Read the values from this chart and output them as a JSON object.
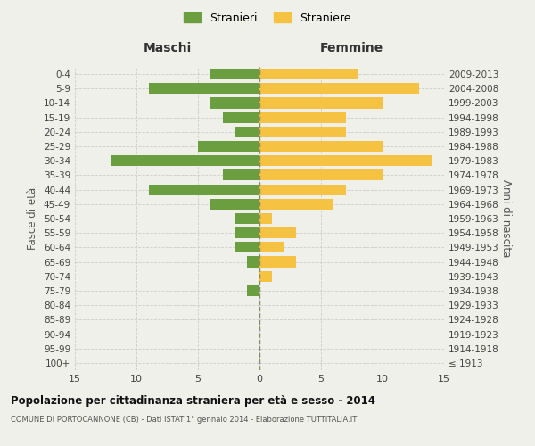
{
  "age_groups": [
    "100+",
    "95-99",
    "90-94",
    "85-89",
    "80-84",
    "75-79",
    "70-74",
    "65-69",
    "60-64",
    "55-59",
    "50-54",
    "45-49",
    "40-44",
    "35-39",
    "30-34",
    "25-29",
    "20-24",
    "15-19",
    "10-14",
    "5-9",
    "0-4"
  ],
  "birth_years": [
    "≤ 1913",
    "1914-1918",
    "1919-1923",
    "1924-1928",
    "1929-1933",
    "1934-1938",
    "1939-1943",
    "1944-1948",
    "1949-1953",
    "1954-1958",
    "1959-1963",
    "1964-1968",
    "1969-1973",
    "1974-1978",
    "1979-1983",
    "1984-1988",
    "1989-1993",
    "1994-1998",
    "1999-2003",
    "2004-2008",
    "2009-2013"
  ],
  "maschi": [
    0,
    0,
    0,
    0,
    0,
    1,
    0,
    1,
    2,
    2,
    2,
    4,
    9,
    3,
    12,
    5,
    2,
    3,
    4,
    9,
    4
  ],
  "femmine": [
    0,
    0,
    0,
    0,
    0,
    0,
    1,
    3,
    2,
    3,
    1,
    6,
    7,
    10,
    14,
    10,
    7,
    7,
    10,
    13,
    8
  ],
  "maschi_color": "#6b9e3e",
  "femmine_color": "#f5c242",
  "background_color": "#f0f0eb",
  "grid_color": "#cccccc",
  "title": "Popolazione per cittadinanza straniera per età e sesso - 2014",
  "subtitle": "COMUNE DI PORTOCANNONE (CB) - Dati ISTAT 1° gennaio 2014 - Elaborazione TUTTITALIA.IT",
  "xlabel_left": "Maschi",
  "xlabel_right": "Femmine",
  "ylabel_left": "Fasce di età",
  "ylabel_right": "Anni di nascita",
  "legend_maschi": "Stranieri",
  "legend_femmine": "Straniere",
  "xlim": 15,
  "bar_height": 0.75
}
